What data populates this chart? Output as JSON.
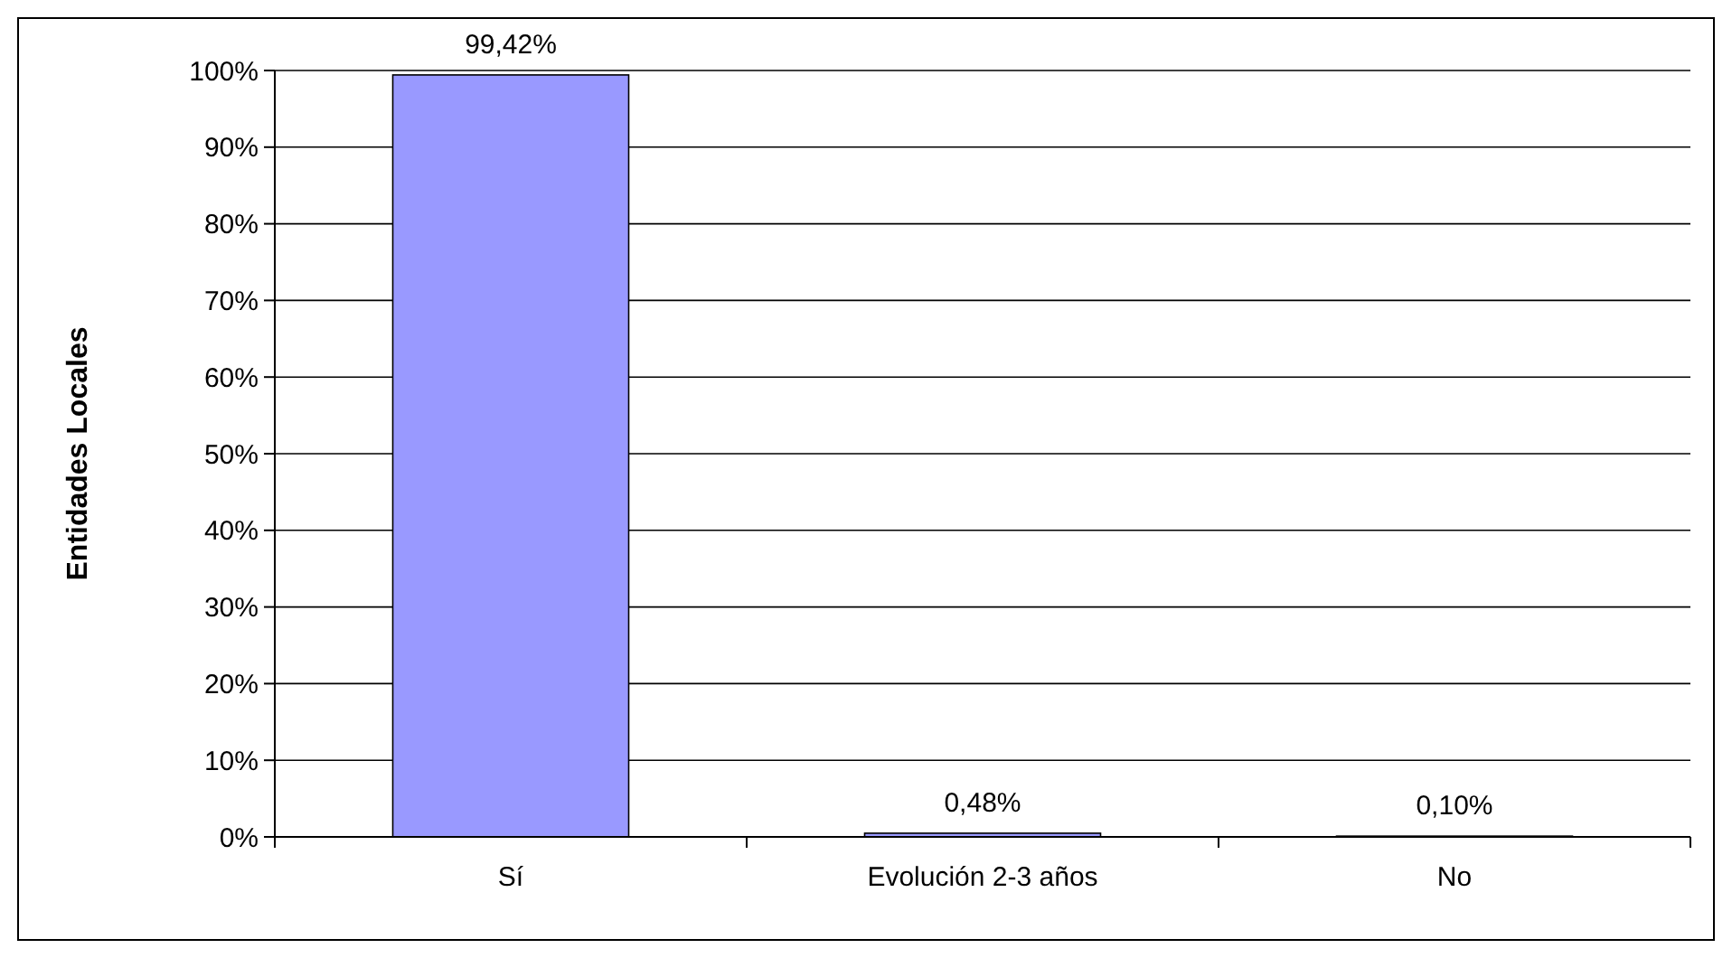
{
  "chart_data": {
    "type": "bar",
    "ylabel": "Entidades Locales",
    "categories": [
      "Sí",
      "Evolución 2-3 años",
      "No"
    ],
    "values": [
      99.42,
      0.48,
      0.1
    ],
    "color": "#9999ff",
    "value_labels": [
      "99,42%",
      "0,48%",
      "0,10%"
    ],
    "ylim": [
      0,
      100
    ],
    "yticks": [
      {
        "value": 0,
        "label": "0%"
      },
      {
        "value": 10,
        "label": "10%"
      },
      {
        "value": 20,
        "label": "20%"
      },
      {
        "value": 30,
        "label": "30%"
      },
      {
        "value": 40,
        "label": "40%"
      },
      {
        "value": 50,
        "label": "50%"
      },
      {
        "value": 60,
        "label": "60%"
      },
      {
        "value": 70,
        "label": "70%"
      },
      {
        "value": 80,
        "label": "80%"
      },
      {
        "value": 90,
        "label": "90%"
      },
      {
        "value": 100,
        "label": "100%"
      }
    ],
    "grid": "y"
  }
}
